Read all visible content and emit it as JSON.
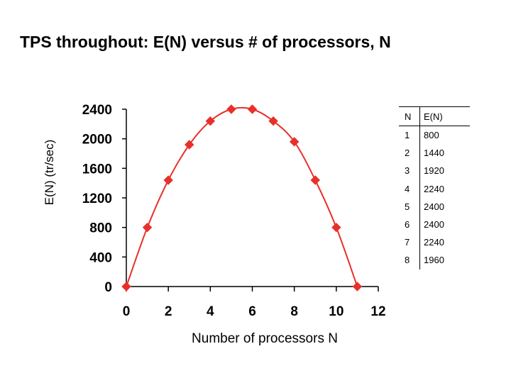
{
  "slide": {
    "title": "TPS throughout: E(N) versus # of processors, N"
  },
  "chart_data": {
    "type": "line",
    "title": "",
    "xlabel": "Number of processors N",
    "ylabel": "E(N) (tr/sec)",
    "xlim": [
      0,
      12
    ],
    "ylim": [
      0,
      2400
    ],
    "x_ticks": [
      "0",
      "2",
      "4",
      "6",
      "8",
      "10",
      "12"
    ],
    "y_ticks": [
      "0",
      "400",
      "800",
      "1200",
      "1600",
      "2000",
      "2400"
    ],
    "grid": false,
    "legend": "none",
    "series": [
      {
        "x": [
          0,
          1,
          2,
          3,
          4,
          5,
          6,
          7,
          8,
          9,
          10,
          11
        ],
        "values": [
          0,
          800,
          1440,
          1920,
          2240,
          2400,
          2400,
          2240,
          1960,
          1440,
          800,
          0
        ],
        "color": "#e8302a",
        "marker": "diamond",
        "smooth": true
      }
    ]
  },
  "table": {
    "headers": [
      "N",
      "E(N)"
    ],
    "rows": [
      [
        "1",
        "800"
      ],
      [
        "2",
        "1440"
      ],
      [
        "3",
        "1920"
      ],
      [
        "4",
        "2240"
      ],
      [
        "5",
        "2400"
      ],
      [
        "6",
        "2400"
      ],
      [
        "7",
        "2240"
      ],
      [
        "8",
        "1960"
      ]
    ]
  }
}
